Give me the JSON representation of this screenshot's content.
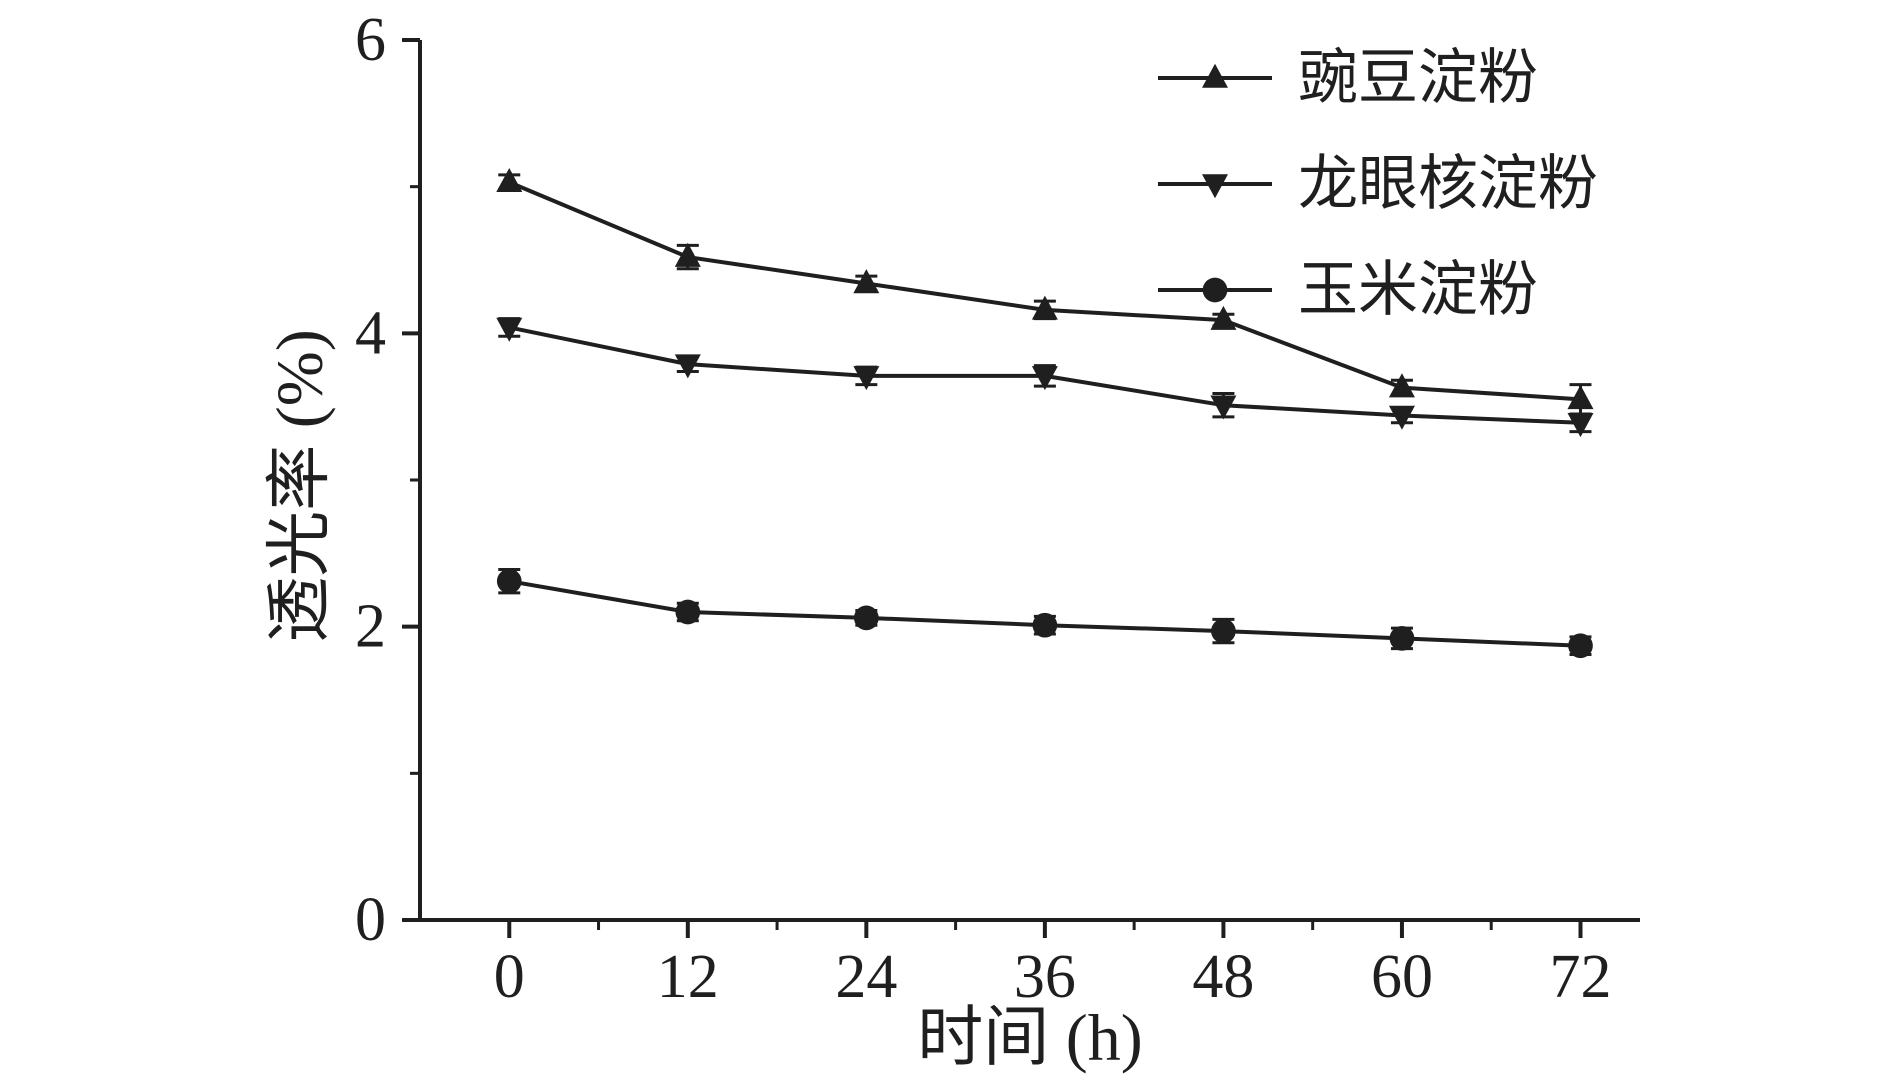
{
  "chart_data": {
    "type": "line",
    "title": "",
    "xlabel": "时间 (h)",
    "ylabel": "透光率 (%)",
    "x": [
      0,
      12,
      24,
      36,
      48,
      60,
      72
    ],
    "xticks": [
      0,
      12,
      24,
      36,
      48,
      60,
      72
    ],
    "yticks": [
      0,
      2,
      4,
      6
    ],
    "xlim": [
      -6,
      76
    ],
    "ylim": [
      0,
      6
    ],
    "y_minor_step": 1,
    "x_minor_step": 6,
    "grid": false,
    "legend_position": "top-right",
    "error_bars": true,
    "series": [
      {
        "name": "豌豆淀粉",
        "marker": "triangle-up",
        "values": [
          5.03,
          4.52,
          4.34,
          4.16,
          4.09,
          3.63,
          3.55
        ],
        "errors": [
          0.05,
          0.08,
          0.05,
          0.06,
          0.04,
          0.05,
          0.1
        ]
      },
      {
        "name": "龙眼核淀粉",
        "marker": "triangle-down",
        "values": [
          4.04,
          3.79,
          3.71,
          3.71,
          3.51,
          3.44,
          3.39
        ],
        "errors": [
          0.06,
          0.05,
          0.06,
          0.07,
          0.08,
          0.05,
          0.06
        ]
      },
      {
        "name": "玉米淀粉",
        "marker": "circle",
        "values": [
          2.31,
          2.1,
          2.06,
          2.01,
          1.97,
          1.92,
          1.87
        ],
        "errors": [
          0.08,
          0.06,
          0.05,
          0.06,
          0.08,
          0.07,
          0.06
        ]
      }
    ],
    "colors": {
      "ink": "#1f1f1f",
      "background": "#ffffff"
    }
  }
}
